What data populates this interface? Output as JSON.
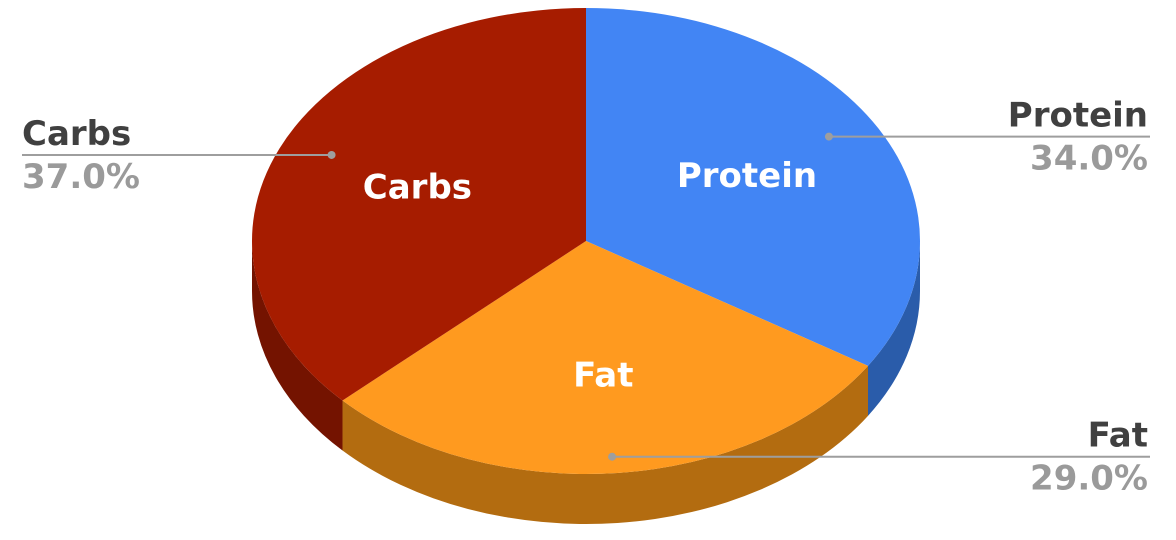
{
  "chart_data": {
    "type": "pie",
    "title": "",
    "style": "3d",
    "slices": [
      {
        "label": "Protein",
        "value": 34.0,
        "percent_label": "34.0%",
        "color": "#4285f4",
        "side_color": "#2a5caa"
      },
      {
        "label": "Fat",
        "value": 29.0,
        "percent_label": "29.0%",
        "color": "#ff9a1f",
        "side_color": "#b36c10"
      },
      {
        "label": "Carbs",
        "value": 37.0,
        "percent_label": "37.0%",
        "color": "#a61c00",
        "side_color": "#741300"
      }
    ],
    "legend": "none"
  }
}
